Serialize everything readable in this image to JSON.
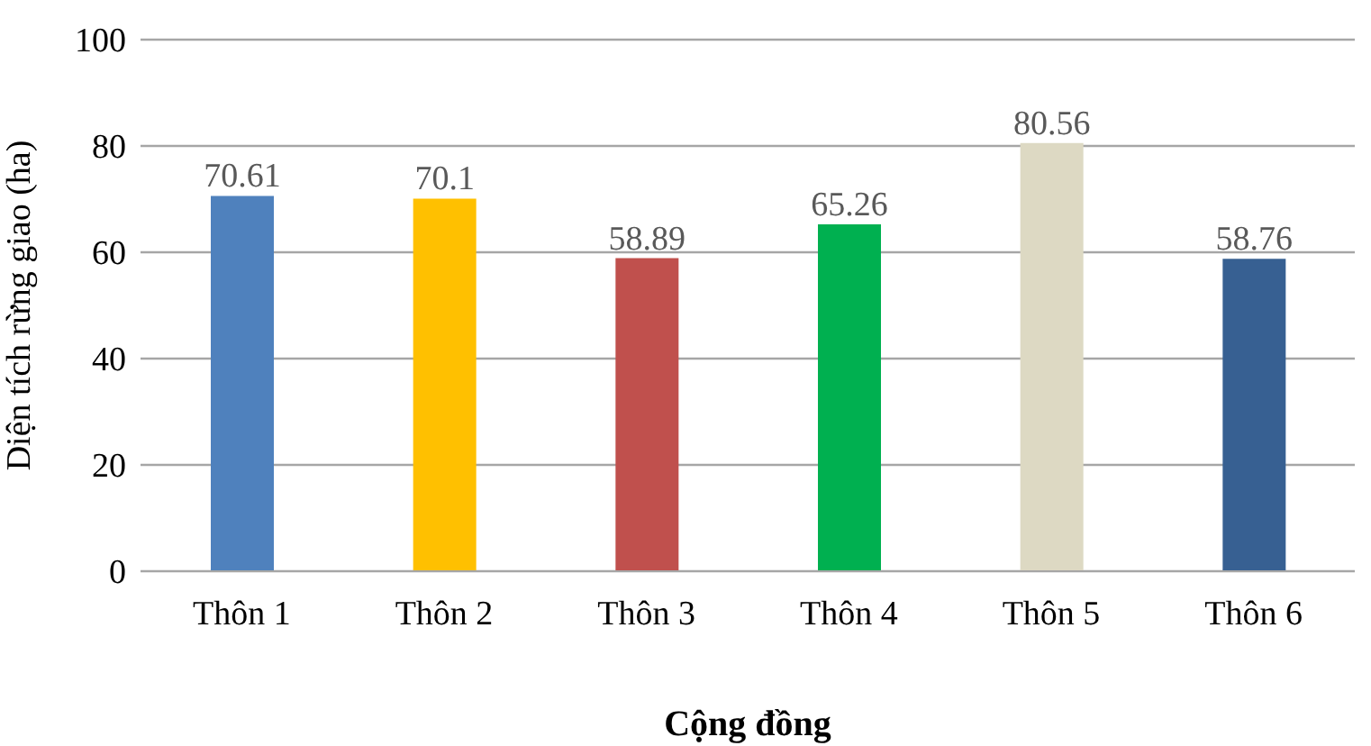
{
  "chart_data": {
    "type": "bar",
    "xlabel": "Cộng đồng",
    "ylabel": "Diện tích rừng giao (ha)",
    "categories": [
      "Thôn 1",
      "Thôn 2",
      "Thôn 3",
      "Thôn 4",
      "Thôn 5",
      "Thôn 6"
    ],
    "values": [
      70.61,
      70.1,
      58.89,
      65.26,
      80.56,
      58.76
    ],
    "colors": [
      "#4f81bd",
      "#ffc000",
      "#c0504d",
      "#00b050",
      "#ddd9c3",
      "#376092"
    ],
    "ylim": [
      0,
      100
    ],
    "yticks": [
      0,
      20,
      40,
      60,
      80,
      100
    ],
    "grid": "y",
    "data_labels": true
  }
}
